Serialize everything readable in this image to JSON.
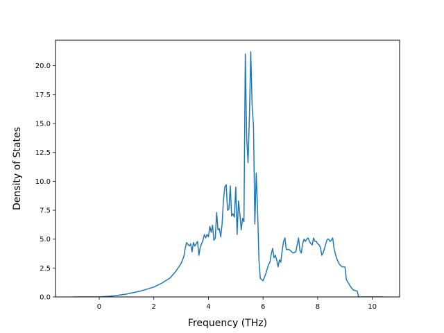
{
  "chart_data": {
    "type": "line",
    "title": "",
    "xlabel": "Frequency (THz)",
    "ylabel": "Density of States",
    "xlim": [
      -1.6,
      11.0
    ],
    "ylim": [
      0.0,
      22.2
    ],
    "xticks": [
      0,
      2,
      4,
      6,
      8,
      10
    ],
    "xtick_labels": [
      "0",
      "2",
      "4",
      "6",
      "8",
      "10"
    ],
    "yticks": [
      0.0,
      2.5,
      5.0,
      7.5,
      10.0,
      12.5,
      15.0,
      17.5,
      20.0
    ],
    "ytick_labels": [
      "0.0",
      "2.5",
      "5.0",
      "7.5",
      "10.0",
      "12.5",
      "15.0",
      "17.5",
      "20.0"
    ],
    "grid": false,
    "line_color": "#1f77b4",
    "series": [
      {
        "x": [
          -0.95,
          0.0,
          0.5,
          1.0,
          1.5,
          2.0,
          2.3,
          2.6,
          2.8,
          3.0,
          3.1,
          3.15,
          3.2,
          3.3,
          3.35,
          3.4,
          3.45,
          3.5,
          3.6,
          3.65,
          3.7,
          3.8,
          3.85,
          3.9,
          3.95,
          4.0,
          4.05,
          4.1,
          4.15,
          4.2,
          4.25,
          4.3,
          4.35,
          4.4,
          4.45,
          4.5,
          4.55,
          4.6,
          4.65,
          4.7,
          4.75,
          4.8,
          4.85,
          4.9,
          4.95,
          5.0,
          5.05,
          5.1,
          5.15,
          5.2,
          5.25,
          5.3,
          5.35,
          5.4,
          5.45,
          5.5,
          5.55,
          5.6,
          5.65,
          5.7,
          5.75,
          5.8,
          5.85,
          5.9,
          5.95,
          6.0,
          6.05,
          6.1,
          6.2,
          6.25,
          6.3,
          6.35,
          6.4,
          6.45,
          6.5,
          6.55,
          6.6,
          6.65,
          6.7,
          6.75,
          6.8,
          6.85,
          6.9,
          6.95,
          7.0,
          7.05,
          7.1,
          7.2,
          7.3,
          7.35,
          7.4,
          7.45,
          7.5,
          7.55,
          7.6,
          7.65,
          7.7,
          7.75,
          7.8,
          7.85,
          7.9,
          7.95,
          8.0,
          8.05,
          8.1,
          8.15,
          8.2,
          8.25,
          8.3,
          8.35,
          8.4,
          8.45,
          8.5,
          8.55,
          8.6,
          8.65,
          8.7,
          8.8,
          8.9,
          9.0,
          9.05,
          9.1,
          9.2,
          9.3,
          9.45,
          9.5,
          9.6,
          10.0,
          10.4
        ],
        "values": [
          0.0,
          0.0,
          0.08,
          0.25,
          0.5,
          0.85,
          1.2,
          1.65,
          2.2,
          2.9,
          3.5,
          4.2,
          4.7,
          4.4,
          4.6,
          3.9,
          4.7,
          4.4,
          4.8,
          3.6,
          4.3,
          4.9,
          5.4,
          5.1,
          5.4,
          5.2,
          6.1,
          5.6,
          6.2,
          4.9,
          5.1,
          7.3,
          5.8,
          5.9,
          5.2,
          6.3,
          8.4,
          9.5,
          9.7,
          7.5,
          7.6,
          9.6,
          7.0,
          7.2,
          6.9,
          9.5,
          5.4,
          8.3,
          7.2,
          5.8,
          6.8,
          6.5,
          21.0,
          13.8,
          11.6,
          15.5,
          21.2,
          16.5,
          14.8,
          6.3,
          10.7,
          7.5,
          3.2,
          1.6,
          1.5,
          1.4,
          1.7,
          2.0,
          2.8,
          3.0,
          3.7,
          4.2,
          3.4,
          3.6,
          3.2,
          2.6,
          3.2,
          3.0,
          4.0,
          4.8,
          5.1,
          4.1,
          4.1,
          4.1,
          4.0,
          3.9,
          3.8,
          3.9,
          5.1,
          4.0,
          3.8,
          4.6,
          5.0,
          4.8,
          5.0,
          5.1,
          4.8,
          4.6,
          4.5,
          5.1,
          4.8,
          4.8,
          4.6,
          4.5,
          4.3,
          3.6,
          3.8,
          4.2,
          4.6,
          5.0,
          5.0,
          4.8,
          4.9,
          5.1,
          4.2,
          3.7,
          3.3,
          2.8,
          2.6,
          2.6,
          1.5,
          1.3,
          0.9,
          0.6,
          0.5,
          0.0,
          0.0,
          0.0,
          0.0
        ]
      }
    ]
  }
}
